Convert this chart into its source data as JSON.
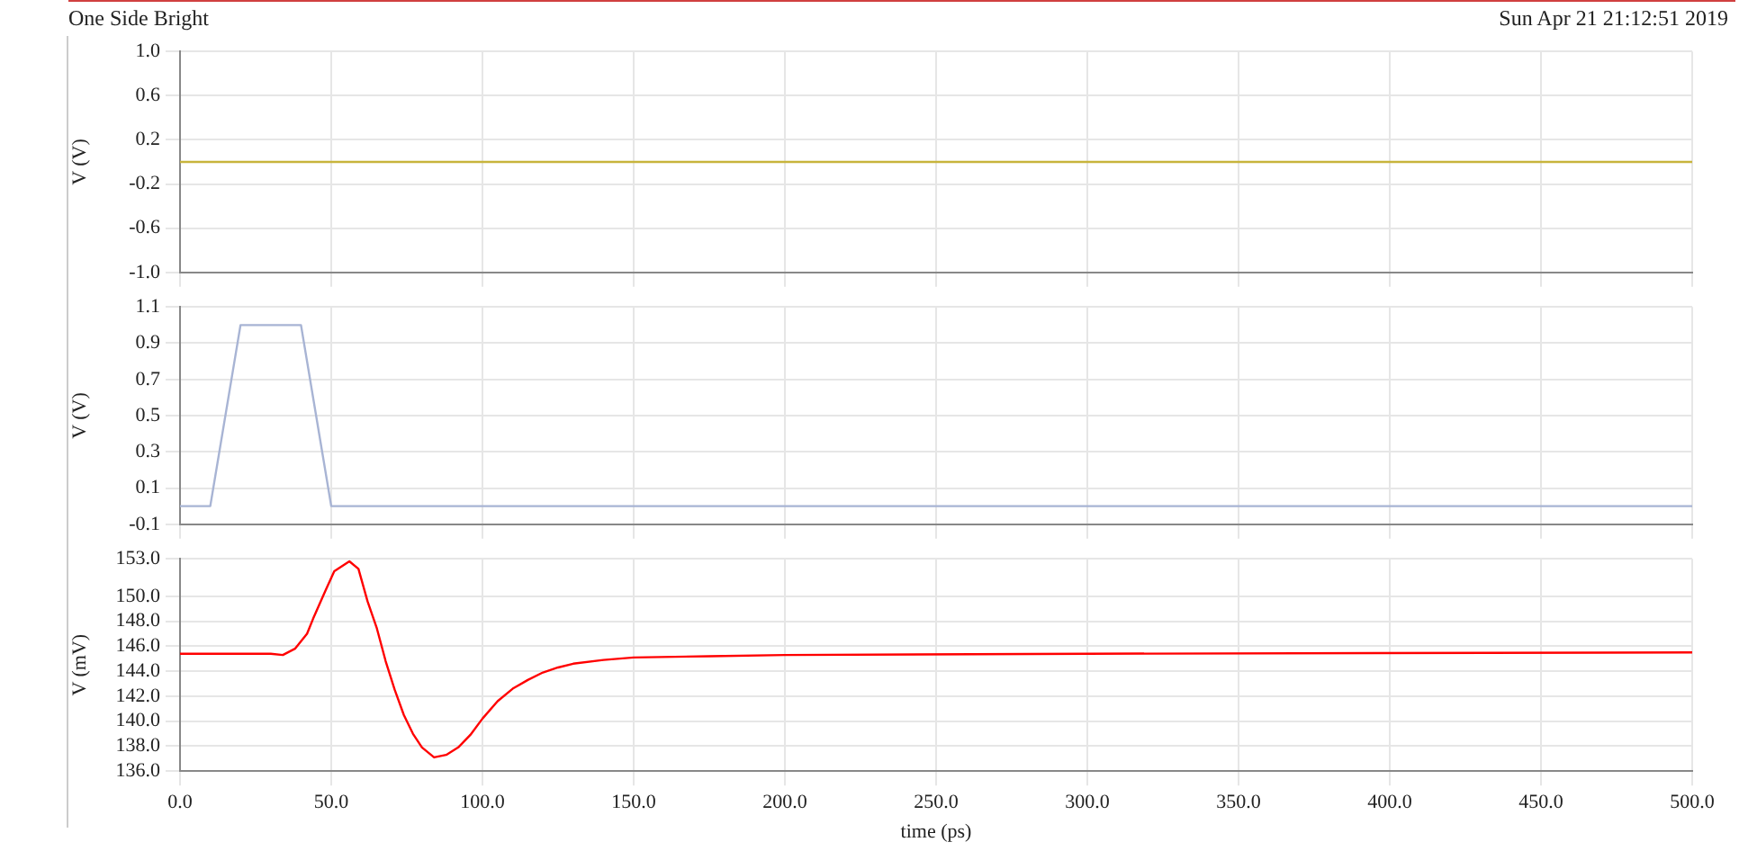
{
  "chart_data": [
    {
      "type": "line",
      "title": "One Side Bright",
      "annotations": [
        "Sun Apr 21 21:12:51 2019"
      ],
      "ylabel": "V (V)",
      "xlim": [
        0,
        500
      ],
      "xticks": [
        0,
        50,
        100,
        150,
        200,
        250,
        300,
        350,
        400,
        450,
        500
      ],
      "ylim": [
        -1,
        1
      ],
      "yticks": [
        {
          "value": 1,
          "label": "1.0"
        },
        {
          "value": 0.6,
          "label": "0.6"
        },
        {
          "value": 0.2,
          "label": "0.2"
        },
        {
          "value": -0.2,
          "label": "-0.2"
        },
        {
          "value": -0.6,
          "label": "-0.6"
        },
        {
          "value": -1,
          "label": "-1.0"
        }
      ],
      "grid": true,
      "tick_labels": "y",
      "legend": false,
      "series": [
        {
          "color": "#c8b43c",
          "x": [
            0,
            500
          ],
          "values": [
            0,
            0
          ]
        }
      ]
    },
    {
      "type": "line",
      "ylabel": "V (V)",
      "xlim": [
        0,
        500
      ],
      "xticks": [
        0,
        50,
        100,
        150,
        200,
        250,
        300,
        350,
        400,
        450,
        500
      ],
      "ylim": [
        -0.1,
        1.1
      ],
      "yticks": [
        1.1,
        0.9,
        0.7,
        0.5,
        0.3,
        0.1,
        -0.1
      ],
      "grid": true,
      "tick_labels": "y",
      "legend": false,
      "series": [
        {
          "color": "#a8b4d4",
          "x": [
            0,
            10,
            20,
            40,
            50,
            500
          ],
          "values": [
            0,
            0,
            1,
            1,
            0,
            0
          ]
        }
      ]
    },
    {
      "type": "line",
      "ylabel": "V (mV)",
      "xlabel": "time (ps)",
      "xlim": [
        0,
        500
      ],
      "xticks": [
        {
          "value": 0,
          "label": "0.0"
        },
        {
          "value": 50,
          "label": "50.0"
        },
        {
          "value": 100,
          "label": "100.0"
        },
        {
          "value": 150,
          "label": "150.0"
        },
        {
          "value": 200,
          "label": "200.0"
        },
        {
          "value": 250,
          "label": "250.0"
        },
        {
          "value": 300,
          "label": "300.0"
        },
        {
          "value": 350,
          "label": "350.0"
        },
        {
          "value": 400,
          "label": "400.0"
        },
        {
          "value": 450,
          "label": "450.0"
        },
        {
          "value": 500,
          "label": "500.0"
        }
      ],
      "ylim": [
        136,
        153
      ],
      "yticks": [
        {
          "value": 136,
          "label": "136.0"
        },
        {
          "value": 138,
          "label": "138.0"
        },
        {
          "value": 140,
          "label": "140.0"
        },
        {
          "value": 142,
          "label": "142.0"
        },
        {
          "value": 144,
          "label": "144.0"
        },
        {
          "value": 146,
          "label": "146.0"
        },
        {
          "value": 148,
          "label": "148.0"
        },
        {
          "value": 150,
          "label": "150.0"
        },
        {
          "value": 153,
          "label": "153.0"
        }
      ],
      "grid": true,
      "legend": false,
      "series": [
        {
          "color": "#ff0000",
          "x": [
            0,
            30,
            34,
            38,
            42,
            44,
            48,
            51,
            56,
            59,
            62,
            65,
            68,
            71,
            74,
            77,
            80,
            84,
            88,
            92,
            96,
            100,
            105,
            110,
            115,
            120,
            125,
            130,
            140,
            150,
            175,
            200,
            300,
            500
          ],
          "values": [
            145.4,
            145.4,
            145.3,
            145.8,
            147.0,
            148.2,
            150.4,
            152.0,
            152.8,
            152.2,
            149.6,
            147.5,
            144.8,
            142.5,
            140.5,
            139.0,
            137.9,
            137.1,
            137.3,
            137.9,
            138.9,
            140.2,
            141.6,
            142.6,
            143.3,
            143.9,
            144.3,
            144.6,
            144.9,
            145.1,
            145.2,
            145.3,
            145.4,
            145.5
          ]
        }
      ]
    }
  ]
}
